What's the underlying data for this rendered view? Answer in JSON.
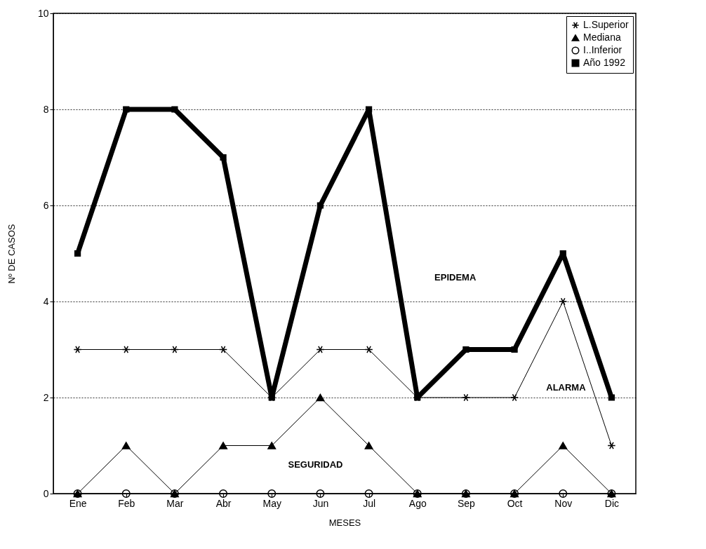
{
  "chart_data": {
    "type": "line",
    "xlabel": "MESES",
    "ylabel": "Nº DE CASOS",
    "categories": [
      "Ene",
      "Feb",
      "Mar",
      "Abr",
      "May",
      "Jun",
      "Jul",
      "Ago",
      "Sep",
      "Oct",
      "Nov",
      "Dic"
    ],
    "series": [
      {
        "name": "L.Superior",
        "color": "#000000",
        "marker": "cross",
        "values": [
          3,
          3,
          3,
          3,
          2,
          3,
          3,
          2,
          2,
          2,
          4,
          1
        ]
      },
      {
        "name": "Mediana",
        "color": "#000000",
        "marker": "triangle",
        "values": [
          0,
          1,
          0,
          1,
          1,
          2,
          1,
          0,
          0,
          0,
          1,
          0
        ]
      },
      {
        "name": "I..Inferior",
        "color": "#000000",
        "marker": "circle",
        "values": [
          0,
          0,
          0,
          0,
          0,
          0,
          0,
          0,
          0,
          0,
          0,
          0
        ]
      },
      {
        "name": "Año 1992",
        "color": "#000000",
        "marker": "square",
        "values": [
          5,
          8,
          8,
          7,
          2,
          6,
          8,
          2,
          3,
          3,
          5,
          2
        ]
      }
    ],
    "ylim": [
      0,
      10
    ],
    "yticks": [
      0,
      2,
      4,
      6,
      8,
      10
    ],
    "grid": "y",
    "legend": "top right",
    "annotations": [
      "EPIDEMA",
      "ALARMA",
      "SEGURIDAD"
    ]
  }
}
